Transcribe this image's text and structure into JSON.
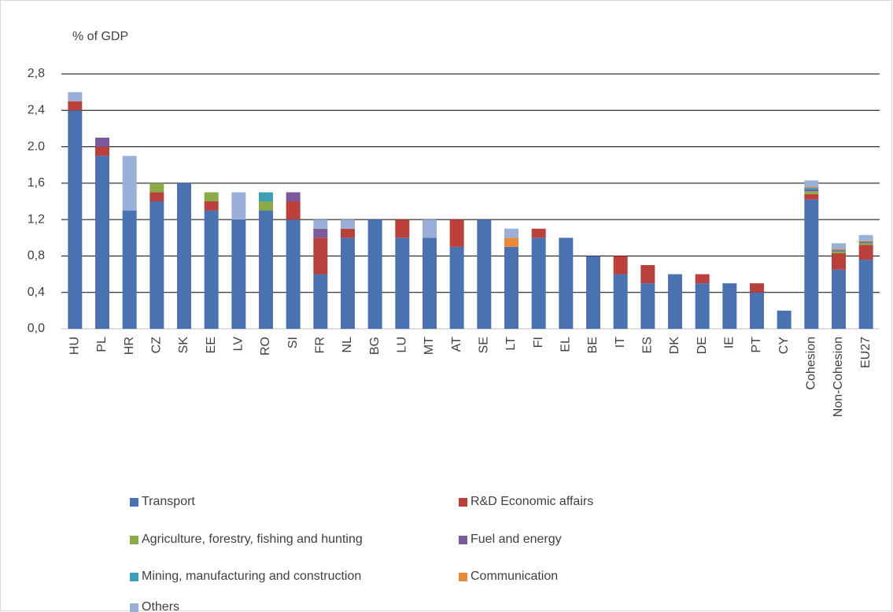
{
  "chart_data": {
    "type": "stacked_bar",
    "y_label": "% of GDP",
    "categories": [
      "HU",
      "PL",
      "HR",
      "CZ",
      "SK",
      "EE",
      "LV",
      "RO",
      "SI",
      "FR",
      "NL",
      "BG",
      "LU",
      "MT",
      "AT",
      "SE",
      "LT",
      "FI",
      "EL",
      "BE",
      "IT",
      "ES",
      "DK",
      "DE",
      "IE",
      "PT",
      "CY",
      "Cohesion",
      "Non-Cohesion",
      "EU27"
    ],
    "series": [
      {
        "name": "Transport",
        "color": "#4a72b0",
        "values": [
          2.4,
          1.9,
          1.3,
          1.4,
          1.6,
          1.3,
          1.2,
          1.3,
          1.2,
          0.6,
          1.0,
          1.2,
          1.0,
          1.0,
          0.9,
          1.2,
          0.9,
          1.0,
          1.0,
          0.8,
          0.6,
          0.5,
          0.6,
          0.5,
          0.5,
          0.4,
          0.2,
          1.42,
          0.65,
          0.76
        ]
      },
      {
        "name": "R&D Economic affairs",
        "color": "#b9403b",
        "values": [
          0.1,
          0.1,
          0,
          0.1,
          0,
          0.1,
          0,
          0,
          0.2,
          0.4,
          0.1,
          0,
          0.2,
          0,
          0.3,
          0,
          0,
          0.1,
          0,
          0,
          0.2,
          0.2,
          0,
          0.1,
          0,
          0.1,
          0,
          0.06,
          0.18,
          0.16
        ]
      },
      {
        "name": "Agriculture, forestry, fishing and hunting",
        "color": "#8aab47",
        "values": [
          0,
          0,
          0,
          0.1,
          0,
          0.1,
          0,
          0.1,
          0,
          0,
          0,
          0,
          0,
          0,
          0,
          0,
          0,
          0,
          0,
          0,
          0,
          0,
          0,
          0,
          0,
          0,
          0,
          0.03,
          0.02,
          0.02
        ]
      },
      {
        "name": "Fuel and energy",
        "color": "#7a5a9c",
        "values": [
          0,
          0.1,
          0,
          0,
          0,
          0,
          0,
          0,
          0.1,
          0.1,
          0,
          0,
          0,
          0,
          0,
          0,
          0,
          0,
          0,
          0,
          0,
          0,
          0,
          0,
          0,
          0,
          0,
          0.02,
          0.01,
          0.01
        ]
      },
      {
        "name": "Mining, manufacturing and construction",
        "color": "#3d9fb5",
        "values": [
          0,
          0,
          0,
          0,
          0,
          0,
          0,
          0.1,
          0,
          0,
          0,
          0,
          0,
          0,
          0,
          0,
          0,
          0,
          0,
          0,
          0,
          0,
          0,
          0,
          0,
          0,
          0,
          0.02,
          0.01,
          0.01
        ]
      },
      {
        "name": "Communication",
        "color": "#e8893a",
        "values": [
          0,
          0,
          0,
          0,
          0,
          0,
          0,
          0,
          0,
          0,
          0,
          0,
          0,
          0,
          0,
          0,
          0.1,
          0,
          0,
          0,
          0,
          0,
          0,
          0,
          0,
          0,
          0,
          0.01,
          0.01,
          0.01
        ]
      },
      {
        "name": "Others",
        "color": "#9bb0d8",
        "values": [
          0.1,
          0,
          0.6,
          0,
          0,
          0,
          0.3,
          0,
          0,
          0.1,
          0.1,
          0,
          0,
          0.2,
          0,
          0,
          0.1,
          0,
          0,
          0,
          0,
          0,
          0,
          0,
          0,
          0,
          0,
          0.07,
          0.06,
          0.06
        ]
      }
    ],
    "ylim": [
      0,
      2.8
    ],
    "yticks": [
      {
        "value": 0,
        "label": "0,0"
      },
      {
        "value": 0.4,
        "label": "0,4"
      },
      {
        "value": 0.8,
        "label": "0,8"
      },
      {
        "value": 1.2,
        "label": "1,2"
      },
      {
        "value": 1.6,
        "label": "1,6"
      },
      {
        "value": 2.0,
        "label": "2.0"
      },
      {
        "value": 2.4,
        "label": "2,4"
      },
      {
        "value": 2.8,
        "label": "2,8"
      }
    ],
    "grid": true
  }
}
